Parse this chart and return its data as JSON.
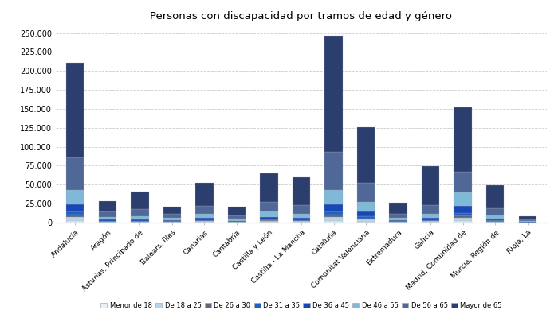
{
  "title": "Personas con discapacidad por tramos de edad y género",
  "categories": [
    "Andalucía",
    "Aragón",
    "Asturias, Principado de",
    "Balears, Illes",
    "Canarias",
    "Cantabria",
    "Castilla y León",
    "Castilla - La Mancha",
    "Cataluña",
    "Comunitat Valenciana",
    "Extremadura",
    "Galicia",
    "Madrid, Comunidad de",
    "Murcia, Región de",
    "Rioja, La"
  ],
  "age_groups": [
    "Menor de 18",
    "De 18 a 25",
    "De 26 a 30",
    "De 31 a 35",
    "De 36 a 45",
    "De 46 a 55",
    "De 56 a 65",
    "Mayor de 65"
  ],
  "colors": [
    "#e8f0f8",
    "#b8d4e8",
    "#606878",
    "#2060c0",
    "#1848b8",
    "#80b8d8",
    "#506898",
    "#2c3e6e"
  ],
  "data": {
    "Andalucía": [
      2000,
      5000,
      3500,
      4500,
      9500,
      19000,
      42000,
      125000
    ],
    "Aragón": [
      400,
      800,
      600,
      700,
      1800,
      3500,
      6500,
      14500
    ],
    "Asturias, Principado de": [
      500,
      800,
      600,
      700,
      1800,
      4000,
      9000,
      24000
    ],
    "Balears, Illes": [
      350,
      600,
      400,
      550,
      1400,
      2800,
      5000,
      10000
    ],
    "Canarias": [
      600,
      1100,
      900,
      1000,
      2800,
      5500,
      10000,
      30000
    ],
    "Cantabria": [
      250,
      450,
      350,
      450,
      1100,
      2300,
      4500,
      12000
    ],
    "Castilla y León": [
      800,
      1400,
      1100,
      1200,
      3200,
      6500,
      13500,
      37000
    ],
    "Castilla - La Mancha": [
      600,
      1100,
      900,
      1000,
      2800,
      5500,
      11000,
      37000
    ],
    "Cataluña": [
      2500,
      4500,
      3500,
      4000,
      10000,
      19000,
      50000,
      153000
    ],
    "Comunitat Valenciana": [
      1200,
      2500,
      2000,
      2500,
      6500,
      13000,
      25000,
      73000
    ],
    "Extremadura": [
      350,
      600,
      450,
      550,
      1400,
      2800,
      5500,
      15000
    ],
    "Galicia": [
      600,
      1000,
      800,
      1000,
      2800,
      5500,
      11500,
      51000
    ],
    "Madrid, Comunidad de": [
      2000,
      4000,
      3000,
      3500,
      9000,
      18000,
      28000,
      84000
    ],
    "Murcia, Región de": [
      500,
      900,
      700,
      900,
      2300,
      4500,
      9500,
      29500
    ],
    "Rioja, La": [
      120,
      220,
      170,
      220,
      550,
      1100,
      1900,
      3800
    ]
  },
  "ylim": [
    0,
    260000
  ],
  "yticks": [
    0,
    25000,
    50000,
    75000,
    100000,
    125000,
    150000,
    175000,
    200000,
    225000,
    250000
  ],
  "background_color": "#ffffff",
  "grid_color": "#cccccc"
}
